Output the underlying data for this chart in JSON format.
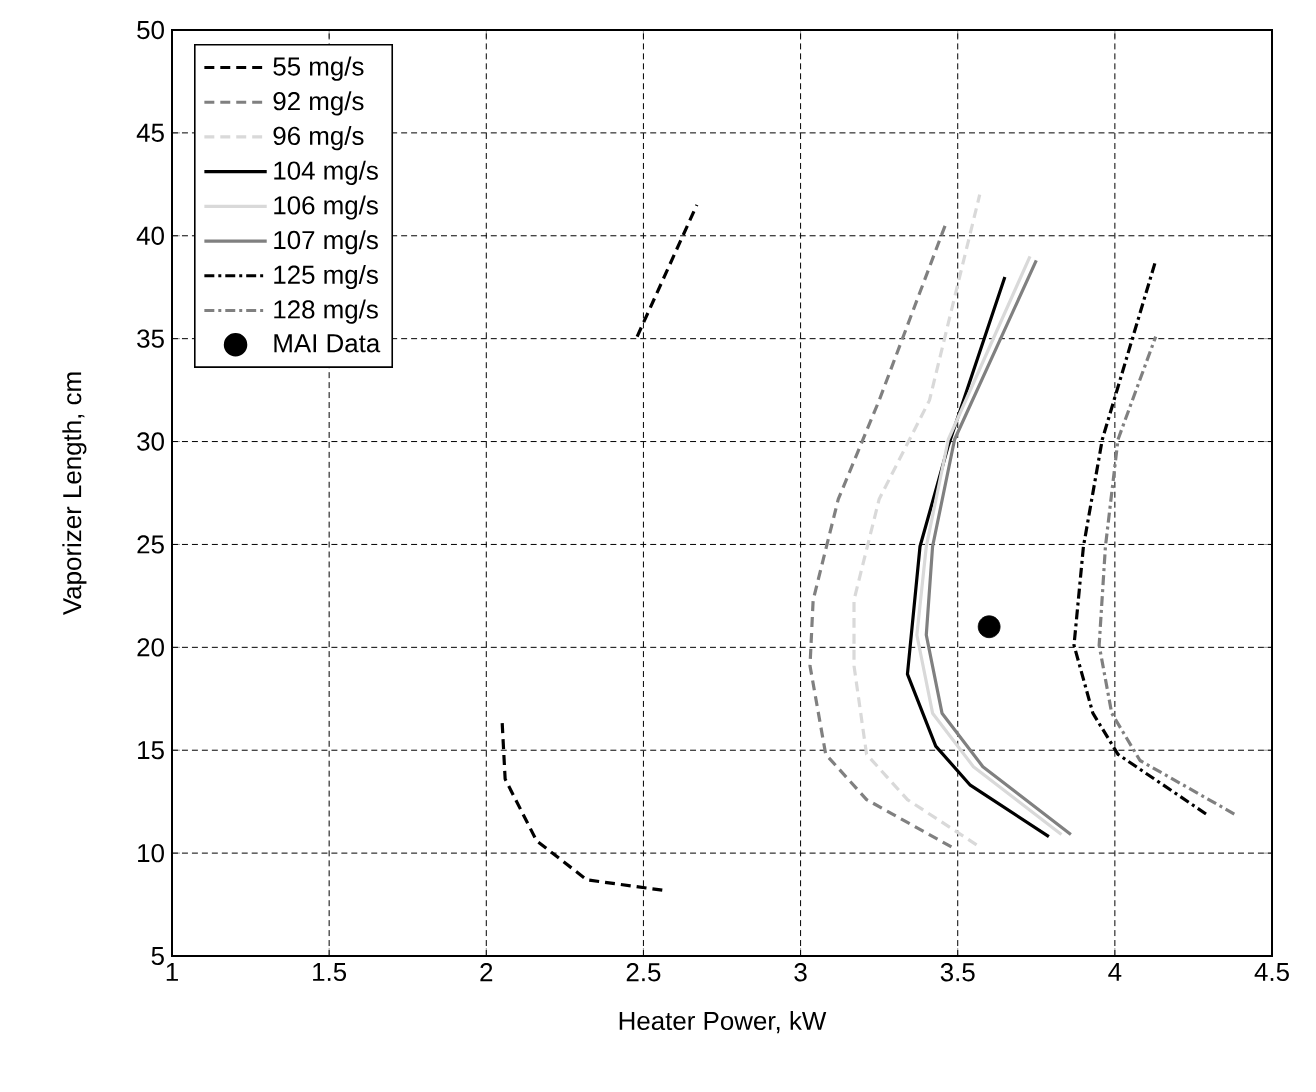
{
  "chart_data": {
    "type": "line",
    "xlabel": "Heater Power, kW",
    "ylabel": "Vaporizer Length, cm",
    "xlim": [
      1,
      4.5
    ],
    "ylim": [
      5,
      50
    ],
    "xticks": [
      1,
      1.5,
      2,
      2.5,
      3,
      3.5,
      4,
      4.5
    ],
    "yticks": [
      5,
      10,
      15,
      20,
      25,
      30,
      35,
      40,
      45,
      50
    ],
    "grid": true,
    "legend": "top left",
    "marker": "none",
    "series": [
      {
        "name": "55 mg/s",
        "color": "#000000",
        "line_style": "dashed",
        "x": [
          2.56,
          2.32,
          2.16,
          2.06,
          2.05,
          null,
          2.48,
          2.67
        ],
        "values": [
          8.2,
          8.7,
          10.6,
          13.6,
          16.5,
          null,
          35.1,
          41.5
        ]
      },
      {
        "name": "92 mg/s",
        "color": "#808080",
        "line_style": "dashed",
        "x": [
          3.48,
          3.21,
          3.08,
          3.03,
          3.04,
          3.12,
          3.25,
          3.46
        ],
        "values": [
          10.3,
          12.6,
          14.8,
          19.1,
          22.3,
          27.2,
          32.0,
          40.5
        ]
      },
      {
        "name": "96 mg/s",
        "color": "#d9d9d9",
        "line_style": "dashed",
        "x": [
          3.56,
          3.34,
          3.21,
          3.17,
          3.17,
          3.25,
          3.41,
          3.57
        ],
        "values": [
          10.4,
          12.6,
          14.8,
          19.1,
          22.3,
          27.2,
          32.0,
          42.0
        ]
      },
      {
        "name": "104 mg/s",
        "color": "#000000",
        "line_style": "solid",
        "x": [
          3.79,
          3.58,
          3.54,
          3.43,
          3.34,
          3.38,
          3.47,
          3.65
        ],
        "values": [
          10.8,
          12.9,
          13.3,
          15.2,
          18.7,
          24.9,
          29.8,
          38.0
        ]
      },
      {
        "name": "106 mg/s",
        "color": "#d9d9d9",
        "line_style": "solid",
        "x": [
          3.83,
          3.55,
          3.42,
          3.37,
          3.4,
          3.47,
          3.73
        ],
        "values": [
          10.9,
          14.2,
          16.8,
          20.6,
          24.9,
          30.1,
          39.0
        ]
      },
      {
        "name": "107 mg/s",
        "color": "#808080",
        "line_style": "solid",
        "x": [
          3.86,
          3.58,
          3.45,
          3.4,
          3.42,
          3.49,
          3.75
        ],
        "values": [
          10.9,
          14.2,
          16.8,
          20.6,
          24.9,
          30.1,
          38.8
        ]
      },
      {
        "name": "125 mg/s",
        "color": "#000000",
        "line_style": "dashdot",
        "x": [
          4.29,
          4.01,
          3.93,
          3.87,
          3.9,
          3.96,
          4.13
        ],
        "values": [
          11.9,
          14.8,
          16.8,
          20.1,
          24.9,
          30.1,
          38.8
        ]
      },
      {
        "name": "128 mg/s",
        "color": "#808080",
        "line_style": "dashdot",
        "x": [
          4.38,
          4.08,
          3.99,
          3.95,
          3.97,
          4.01,
          4.13
        ],
        "values": [
          11.9,
          14.5,
          16.8,
          20.1,
          24.9,
          30.1,
          35.1
        ]
      },
      {
        "name": "MAI Data",
        "color": "#000000",
        "type": "scatter",
        "marker": "circle",
        "x": [
          3.6
        ],
        "values": [
          21.0
        ]
      }
    ]
  }
}
